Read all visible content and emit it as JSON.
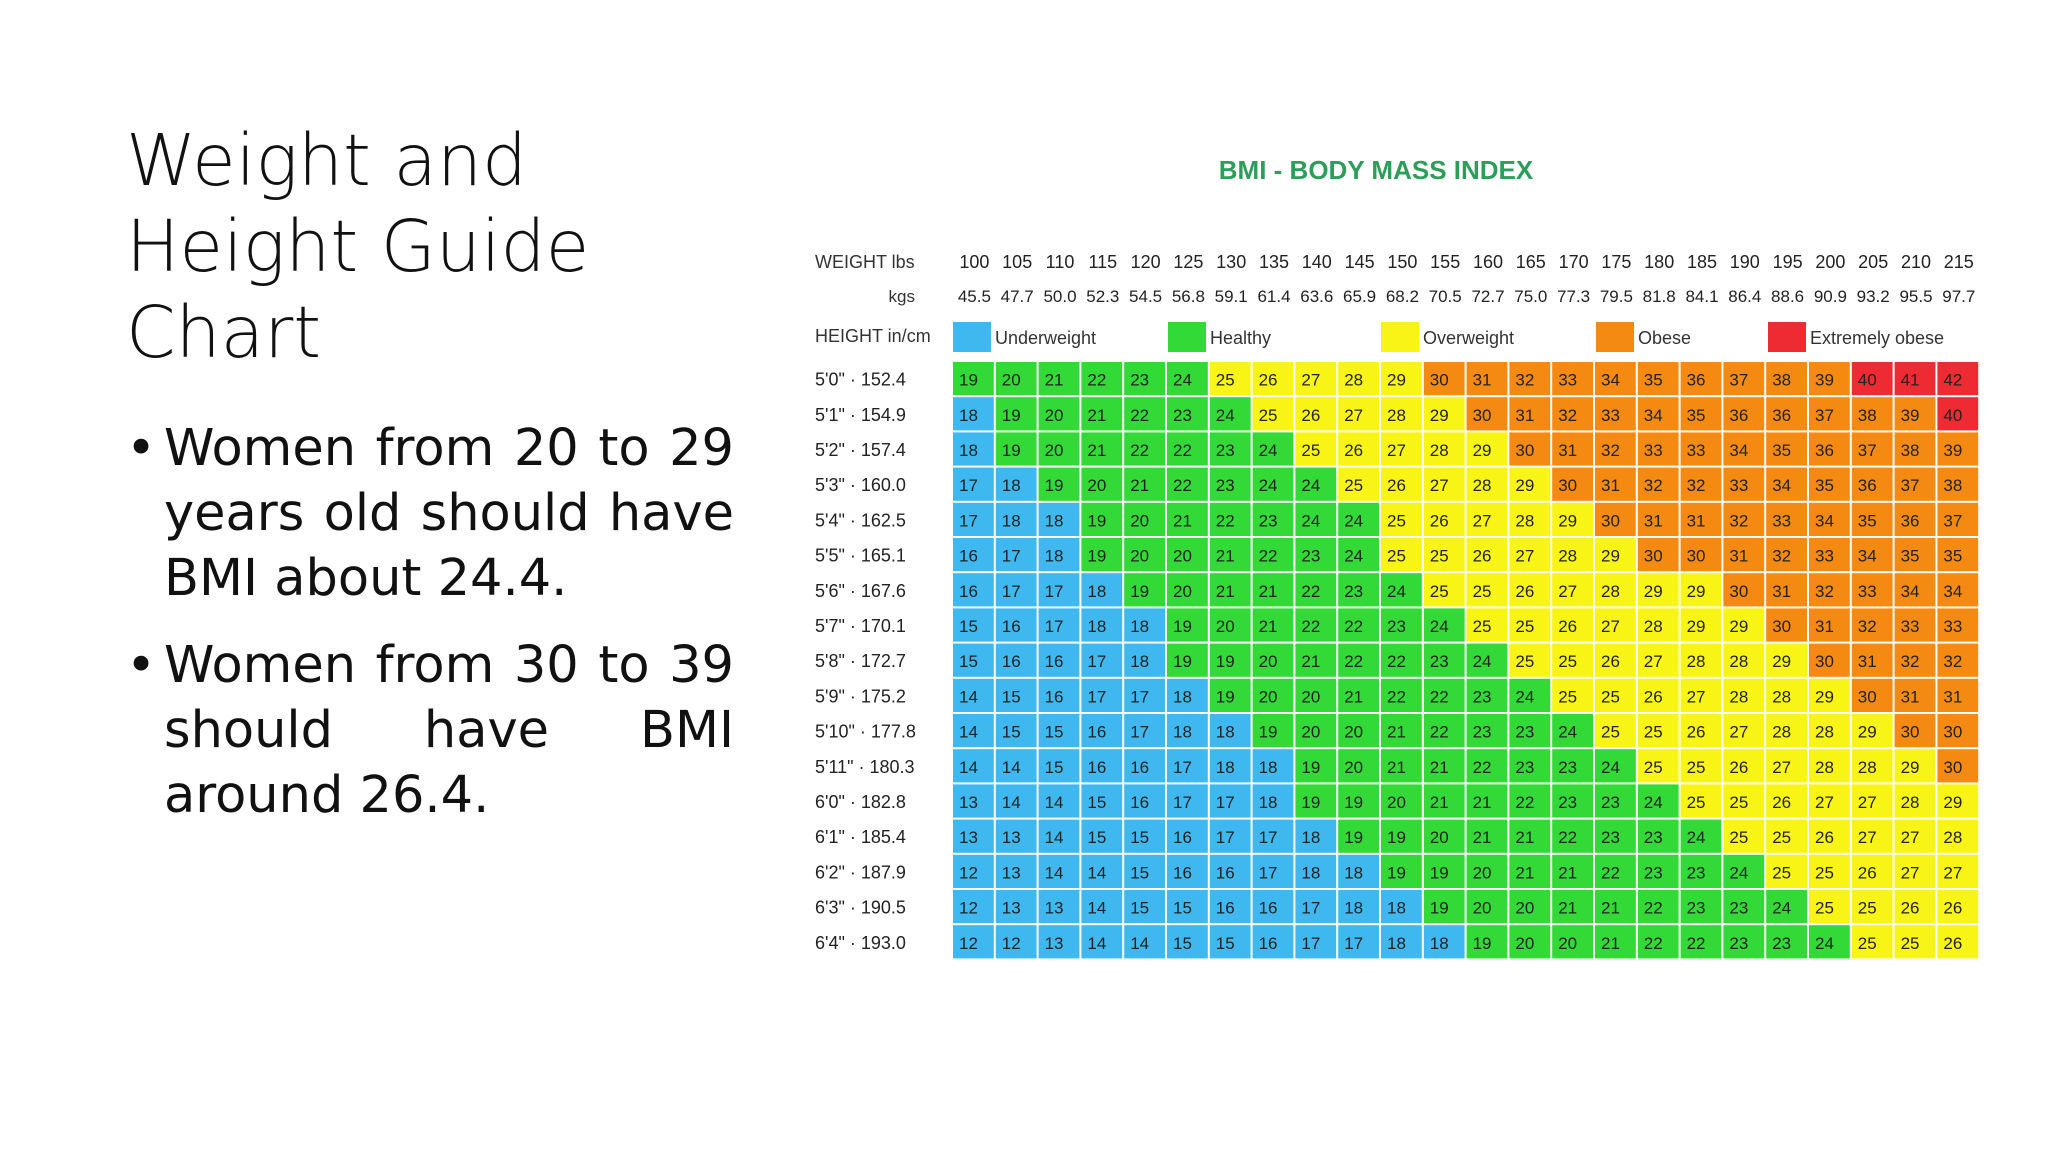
{
  "slide": {
    "title_lines": [
      "Weight and",
      "Height Guide",
      "Chart"
    ],
    "bullets": [
      "Women from 20 to 29 years old should have BMI about 24.4.",
      "Women from 30 to 39 should have BMI around 26.4."
    ]
  },
  "chart_data": {
    "type": "table",
    "title": "BMI - BODY MASS INDEX",
    "weight_label": "WEIGHT lbs",
    "kgs_label": "kgs",
    "height_label": "HEIGHT in/cm",
    "weights_lbs": [
      "100",
      "105",
      "110",
      "115",
      "120",
      "125",
      "130",
      "135",
      "140",
      "145",
      "150",
      "155",
      "160",
      "165",
      "170",
      "175",
      "180",
      "185",
      "190",
      "195",
      "200",
      "205",
      "210",
      "215"
    ],
    "weights_kgs": [
      "45.5",
      "47.7",
      "50.0",
      "52.3",
      "54.5",
      "56.8",
      "59.1",
      "61.4",
      "63.6",
      "65.9",
      "68.2",
      "70.5",
      "72.7",
      "75.0",
      "77.3",
      "79.5",
      "81.8",
      "84.1",
      "86.4",
      "88.6",
      "90.9",
      "93.2",
      "95.5",
      "97.7"
    ],
    "heights": [
      "5'0\" · 152.4",
      "5'1\" · 154.9",
      "5'2\" · 157.4",
      "5'3\" · 160.0",
      "5'4\" · 162.5",
      "5'5\" · 165.1",
      "5'6\" · 167.6",
      "5'7\" · 170.1",
      "5'8\" · 172.7",
      "5'9\" · 175.2",
      "5'10\" · 177.8",
      "5'11\" · 180.3",
      "6'0\" · 182.8",
      "6'1\" · 185.4",
      "6'2\" · 187.9",
      "6'3\" · 190.5",
      "6'4\" · 193.0"
    ],
    "legend": [
      {
        "name": "Underweight",
        "color": "#3fb8f0"
      },
      {
        "name": "Healthy",
        "color": "#33d936"
      },
      {
        "name": "Overweight",
        "color": "#f8f516"
      },
      {
        "name": "Obese",
        "color": "#f58a12"
      },
      {
        "name": "Extremely obese",
        "color": "#ee2a33"
      }
    ],
    "values": [
      [
        19,
        20,
        21,
        22,
        23,
        24,
        25,
        26,
        27,
        28,
        29,
        30,
        31,
        32,
        33,
        34,
        35,
        36,
        37,
        38,
        39,
        40,
        41,
        42
      ],
      [
        18,
        19,
        20,
        21,
        22,
        23,
        24,
        25,
        26,
        27,
        28,
        29,
        30,
        31,
        32,
        33,
        34,
        35,
        36,
        36,
        37,
        38,
        39,
        40
      ],
      [
        18,
        19,
        20,
        21,
        22,
        22,
        23,
        24,
        25,
        26,
        27,
        28,
        29,
        30,
        31,
        32,
        33,
        33,
        34,
        35,
        36,
        37,
        38,
        39
      ],
      [
        17,
        18,
        19,
        20,
        21,
        22,
        23,
        24,
        24,
        25,
        26,
        27,
        28,
        29,
        30,
        31,
        32,
        32,
        33,
        34,
        35,
        36,
        37,
        38
      ],
      [
        17,
        18,
        18,
        19,
        20,
        21,
        22,
        23,
        24,
        24,
        25,
        26,
        27,
        28,
        29,
        30,
        31,
        31,
        32,
        33,
        34,
        35,
        36,
        37
      ],
      [
        16,
        17,
        18,
        19,
        20,
        20,
        21,
        22,
        23,
        24,
        25,
        25,
        26,
        27,
        28,
        29,
        30,
        30,
        31,
        32,
        33,
        34,
        35,
        35
      ],
      [
        16,
        17,
        17,
        18,
        19,
        20,
        21,
        21,
        22,
        23,
        24,
        25,
        25,
        26,
        27,
        28,
        29,
        29,
        30,
        31,
        32,
        33,
        34,
        34
      ],
      [
        15,
        16,
        17,
        18,
        18,
        19,
        20,
        21,
        22,
        22,
        23,
        24,
        25,
        25,
        26,
        27,
        28,
        29,
        29,
        30,
        31,
        32,
        33,
        33
      ],
      [
        15,
        16,
        16,
        17,
        18,
        19,
        19,
        20,
        21,
        22,
        22,
        23,
        24,
        25,
        25,
        26,
        27,
        28,
        28,
        29,
        30,
        31,
        32,
        32
      ],
      [
        14,
        15,
        16,
        17,
        17,
        18,
        19,
        20,
        20,
        21,
        22,
        22,
        23,
        24,
        25,
        25,
        26,
        27,
        28,
        28,
        29,
        30,
        31,
        31
      ],
      [
        14,
        15,
        15,
        16,
        17,
        18,
        18,
        19,
        20,
        20,
        21,
        22,
        23,
        23,
        24,
        25,
        25,
        26,
        27,
        28,
        28,
        29,
        30,
        30
      ],
      [
        14,
        14,
        15,
        16,
        16,
        17,
        18,
        18,
        19,
        20,
        21,
        21,
        22,
        23,
        23,
        24,
        25,
        25,
        26,
        27,
        28,
        28,
        29,
        30
      ],
      [
        13,
        14,
        14,
        15,
        16,
        17,
        17,
        18,
        19,
        19,
        20,
        21,
        21,
        22,
        23,
        23,
        24,
        25,
        25,
        26,
        27,
        27,
        28,
        29
      ],
      [
        13,
        13,
        14,
        15,
        15,
        16,
        17,
        17,
        18,
        19,
        19,
        20,
        21,
        21,
        22,
        23,
        23,
        24,
        25,
        25,
        26,
        27,
        27,
        28
      ],
      [
        12,
        13,
        14,
        14,
        15,
        16,
        16,
        17,
        18,
        18,
        19,
        19,
        20,
        21,
        21,
        22,
        23,
        23,
        24,
        25,
        25,
        26,
        27,
        27
      ],
      [
        12,
        13,
        13,
        14,
        15,
        15,
        16,
        16,
        17,
        18,
        18,
        19,
        20,
        20,
        21,
        21,
        22,
        23,
        23,
        24,
        25,
        25,
        26,
        26
      ],
      [
        12,
        12,
        13,
        14,
        14,
        15,
        15,
        16,
        17,
        17,
        18,
        18,
        19,
        20,
        20,
        21,
        22,
        22,
        23,
        23,
        24,
        25,
        25,
        26
      ]
    ],
    "category_ranges": {
      "Underweight": [
        0,
        18
      ],
      "Healthy": [
        19,
        24
      ],
      "Overweight": [
        25,
        29
      ],
      "Obese": [
        30,
        39
      ],
      "Extremely obese": [
        40,
        99
      ]
    }
  }
}
